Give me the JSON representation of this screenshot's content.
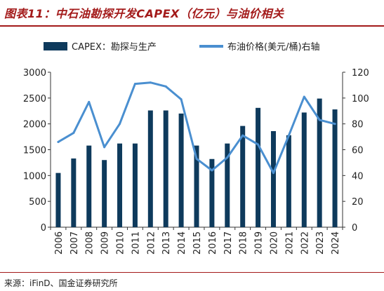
{
  "header": {
    "title": "图表11：中石油勘探开发CAPEX（亿元）与油价相关"
  },
  "footer": {
    "source": "来源：iFinD、国金证券研究所"
  },
  "colors": {
    "bar": "#0e3a5c",
    "line": "#4a8fd0",
    "title": "#a31a1a"
  },
  "chart_data": {
    "type": "bar",
    "categories": [
      "2006",
      "2007",
      "2008",
      "2009",
      "2010",
      "2011",
      "2012",
      "2013",
      "2014",
      "2015",
      "2016",
      "2017",
      "2018",
      "2019",
      "2020",
      "2021",
      "2022",
      "2023",
      "2024"
    ],
    "series": [
      {
        "name": "CAPEX：勘探与生产",
        "type": "bar",
        "axis": "left",
        "values": [
          1050,
          1330,
          1580,
          1300,
          1620,
          1620,
          2260,
          2260,
          2200,
          1580,
          1320,
          1620,
          1960,
          2310,
          1860,
          1780,
          2220,
          2490,
          2280
        ]
      },
      {
        "name": "布油价格(美元/桶)右轴",
        "type": "line",
        "axis": "right",
        "values": [
          66,
          73,
          97,
          62,
          80,
          111,
          112,
          109,
          99,
          53,
          44,
          54,
          71,
          64,
          42,
          71,
          101,
          83,
          80
        ]
      }
    ],
    "ylim_left": [
      0,
      3000
    ],
    "yticks_left": [
      0,
      500,
      1000,
      1500,
      2000,
      2500,
      3000
    ],
    "ylim_right": [
      0,
      120
    ],
    "yticks_right": [
      0,
      20,
      40,
      60,
      80,
      100,
      120
    ],
    "legend_position": "top",
    "grid": false
  }
}
